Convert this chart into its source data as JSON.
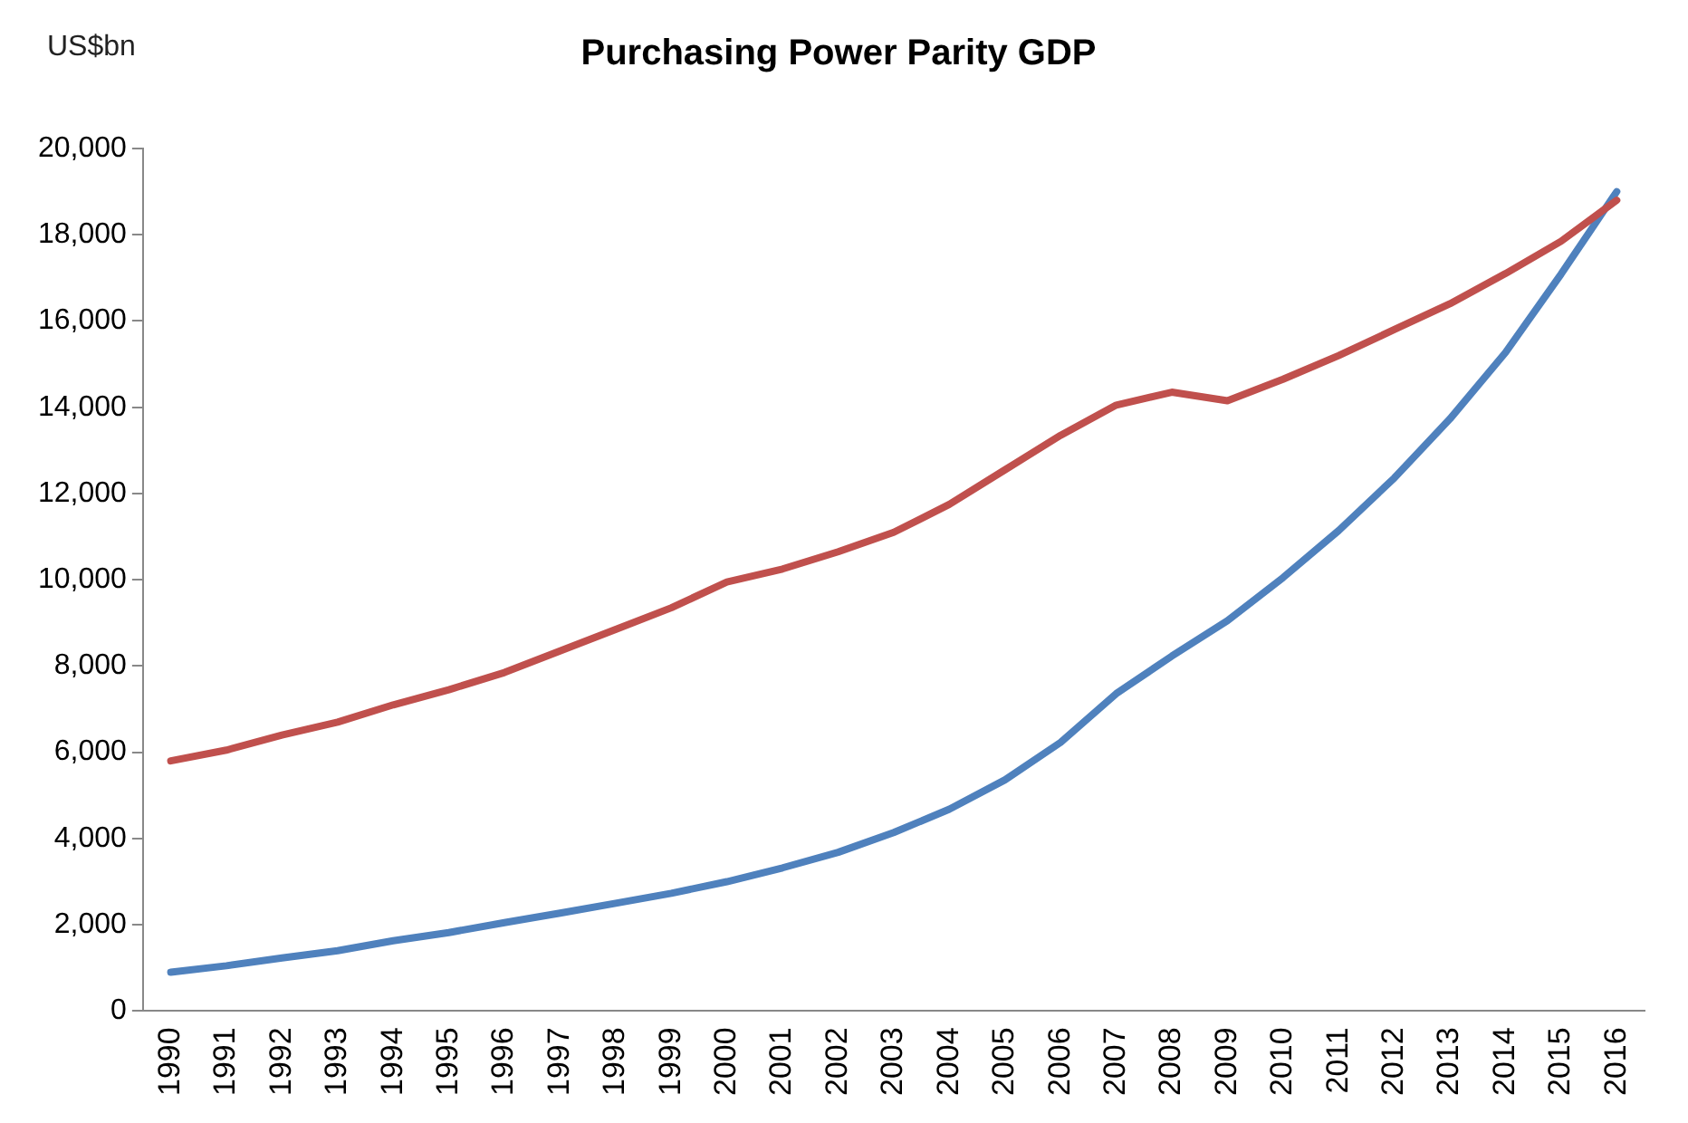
{
  "chart_data": {
    "type": "line",
    "title": "Purchasing Power Parity GDP",
    "ylabel": "US$bn",
    "categories": [
      "1990",
      "1991",
      "1992",
      "1993",
      "1994",
      "1995",
      "1996",
      "1997",
      "1998",
      "1999",
      "2000",
      "2001",
      "2002",
      "2003",
      "2004",
      "2005",
      "2006",
      "2007",
      "2008",
      "2009",
      "2010",
      "2011",
      "2012",
      "2013",
      "2014",
      "2015",
      "2016"
    ],
    "series": [
      {
        "color": "#c0504d",
        "values": [
          5800,
          6050,
          6400,
          6700,
          7100,
          7450,
          7850,
          8350,
          8850,
          9350,
          9950,
          10250,
          10650,
          11100,
          11750,
          12550,
          13350,
          14050,
          14350,
          14150,
          14650,
          15200,
          15800,
          16400,
          17100,
          17850,
          18800
        ]
      },
      {
        "color": "#4f81bd",
        "values": [
          900,
          1050,
          1230,
          1400,
          1630,
          1820,
          2050,
          2270,
          2500,
          2730,
          3000,
          3320,
          3680,
          4140,
          4680,
          5360,
          6230,
          7360,
          8230,
          9050,
          10050,
          11140,
          12360,
          13730,
          15270,
          17090,
          19000
        ]
      }
    ],
    "ylim": [
      0,
      20000
    ],
    "yticks": [
      {
        "value": 0,
        "label": "0"
      },
      {
        "value": 2000,
        "label": "2,000"
      },
      {
        "value": 4000,
        "label": "4,000"
      },
      {
        "value": 6000,
        "label": "6,000"
      },
      {
        "value": 8000,
        "label": "8,000"
      },
      {
        "value": 10000,
        "label": "10,000"
      },
      {
        "value": 12000,
        "label": "12,000"
      },
      {
        "value": 14000,
        "label": "14,000"
      },
      {
        "value": 16000,
        "label": "16,000"
      },
      {
        "value": 18000,
        "label": "18,000"
      },
      {
        "value": 20000,
        "label": "20,000"
      }
    ],
    "grid": false,
    "legend": false,
    "marker": "none",
    "line_style": "solid"
  }
}
